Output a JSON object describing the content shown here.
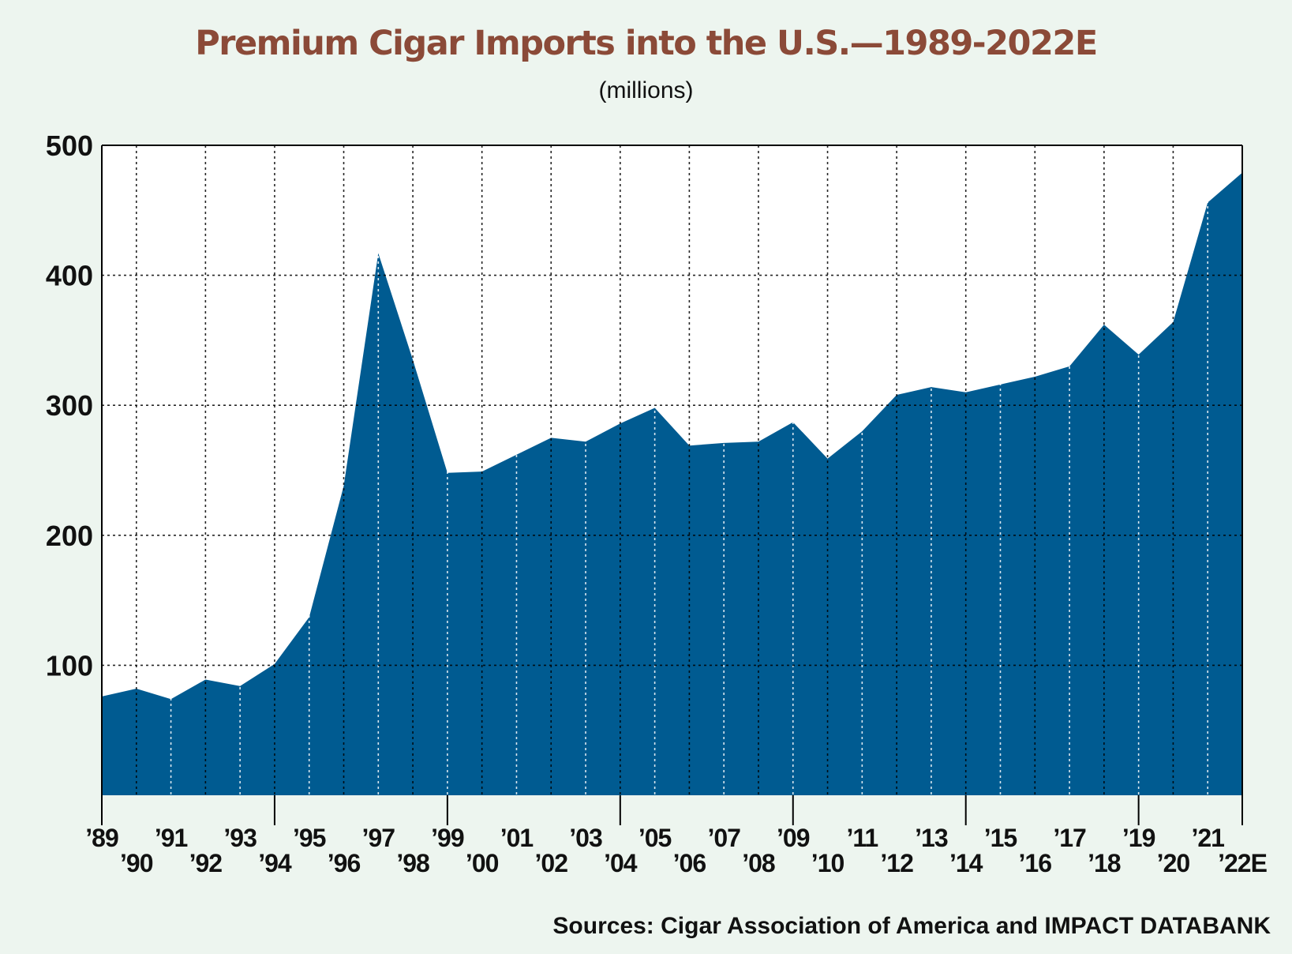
{
  "title": "Premium Cigar Imports into the U.S.—1989-2022E",
  "subtitle": "(millions)",
  "source": "Sources: Cigar Association of America and IMPACT DATABANK",
  "colors": {
    "area": "#005b91",
    "title": "#8b4a38",
    "background": "#edf5ef",
    "plot_background": "#ffffff"
  },
  "chart_data": {
    "type": "area",
    "title": "Premium Cigar Imports into the U.S.—1989-2022E",
    "subtitle": "(millions)",
    "x": [
      "’89",
      "’90",
      "’91",
      "’92",
      "’93",
      "’94",
      "’95",
      "’96",
      "’97",
      "’98",
      "’99",
      "’00",
      "’01",
      "’02",
      "’03",
      "’04",
      "’05",
      "’06",
      "’07",
      "’08",
      "’09",
      "’10",
      "’11",
      "’12",
      "’13",
      "’14",
      "’15",
      "’16",
      "’17",
      "’18",
      "’19",
      "’20",
      "’21",
      "’22E"
    ],
    "values": [
      76,
      82,
      74,
      89,
      84,
      101,
      137,
      238,
      417,
      335,
      248,
      249,
      262,
      275,
      272,
      286,
      298,
      269,
      271,
      272,
      287,
      259,
      280,
      308,
      314,
      310,
      316,
      322,
      330,
      362,
      339,
      364,
      456,
      479
    ],
    "ylim": [
      0,
      500
    ],
    "yticks": [
      100,
      200,
      300,
      400,
      500
    ],
    "ytick_labels": [
      "100",
      "200",
      "300",
      "400",
      "500"
    ],
    "xlabel": "",
    "ylabel": "",
    "grid": true,
    "legend": "none"
  }
}
